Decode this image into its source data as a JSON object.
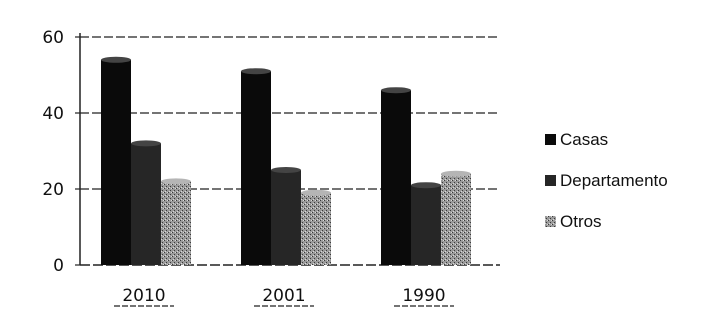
{
  "chart_data": {
    "type": "bar",
    "title": "",
    "xlabel": "",
    "ylabel": "",
    "categories": [
      "2010",
      "2001",
      "1990"
    ],
    "series": [
      {
        "name": "Casas",
        "values": [
          54,
          51,
          46
        ],
        "color": "#0a0a0a"
      },
      {
        "name": "Departamento",
        "values": [
          32,
          25,
          21
        ],
        "color": "#262626"
      },
      {
        "name": "Otros",
        "values": [
          22,
          19,
          24
        ],
        "color": "#8c8c8c"
      }
    ],
    "ylim": [
      0,
      60
    ],
    "yticks": [
      "0",
      "20",
      "40",
      "60"
    ],
    "grid": true,
    "legend_position": "right"
  }
}
